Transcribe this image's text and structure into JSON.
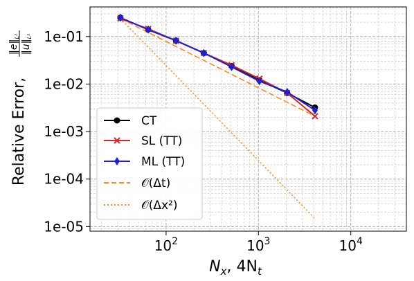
{
  "chart_data": {
    "type": "line",
    "xscale": "log",
    "yscale": "log",
    "xlim": [
      15,
      40000
    ],
    "ylim": [
      8e-06,
      0.42
    ],
    "grid": true,
    "legend_position": "lower-left",
    "xlabel_parts": [
      "N",
      "x",
      ", 4N",
      "t"
    ],
    "ylabel_prefix": "Relative Error,",
    "ylabel_numerator": "‖e‖",
    "ylabel_denominator": "‖u‖",
    "ylabel_subscript": "L²",
    "x_ticks": [
      {
        "value": 100,
        "base": "10",
        "exp": "2"
      },
      {
        "value": 1000,
        "base": "10",
        "exp": "3"
      },
      {
        "value": 10000,
        "base": "10",
        "exp": "4"
      }
    ],
    "y_ticks": [
      {
        "value": 0.1,
        "label": "1e-01"
      },
      {
        "value": 0.01,
        "label": "1e-02"
      },
      {
        "value": 0.001,
        "label": "1e-03"
      },
      {
        "value": 0.0001,
        "label": "1e-04"
      },
      {
        "value": 1e-05,
        "label": "1e-05"
      }
    ],
    "series": [
      {
        "name": "CT",
        "color": "#000000",
        "marker": "circle",
        "linestyle": "solid",
        "x": [
          32,
          64,
          128,
          256,
          512,
          1024,
          2048,
          4096
        ],
        "y": [
          0.25,
          0.14,
          0.082,
          0.045,
          0.024,
          0.012,
          0.0065,
          0.0032
        ]
      },
      {
        "name": "SL (TT)",
        "color": "#d62728",
        "marker": "x",
        "linestyle": "solid",
        "x": [
          32,
          64,
          128,
          256,
          512,
          1024,
          2048,
          4096
        ],
        "y": [
          0.24,
          0.145,
          0.082,
          0.045,
          0.025,
          0.013,
          0.0065,
          0.0021
        ]
      },
      {
        "name": "ML (TT)",
        "color": "#1f1fd6",
        "marker": "diamond",
        "linestyle": "solid",
        "x": [
          32,
          64,
          128,
          256,
          512,
          1024,
          2048,
          4096
        ],
        "y": [
          0.25,
          0.14,
          0.082,
          0.045,
          0.023,
          0.0115,
          0.0068,
          0.0028
        ]
      },
      {
        "name": "𝒪(Δt)",
        "color": "#ff8c1a",
        "marker": "none",
        "linestyle": "dashed",
        "x": [
          32,
          4096
        ],
        "y": [
          0.24,
          0.0021
        ]
      },
      {
        "name": "𝒪(Δx²)",
        "color": "#ff8c1a",
        "marker": "none",
        "linestyle": "dotted",
        "x": [
          32,
          4096
        ],
        "y": [
          0.24,
          1.47e-05
        ]
      }
    ]
  }
}
